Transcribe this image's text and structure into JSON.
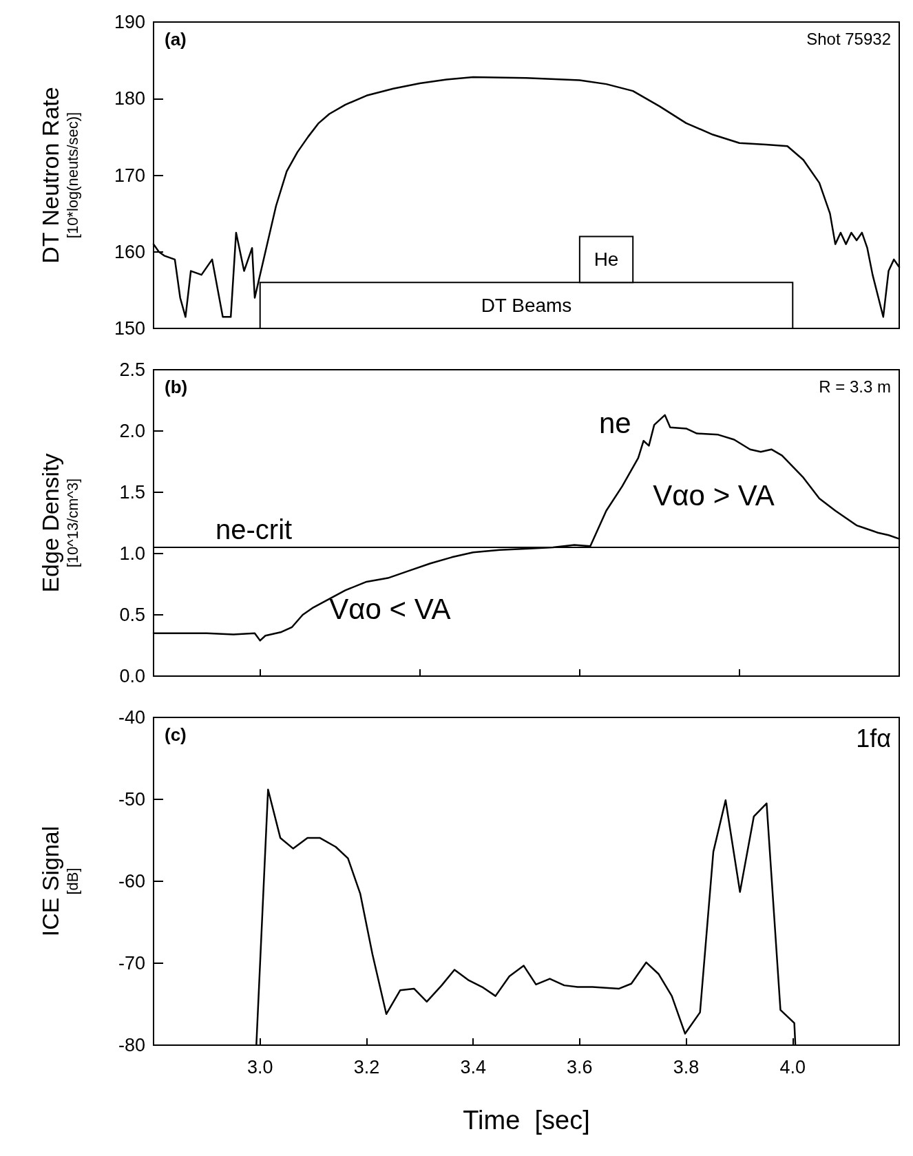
{
  "chart_data": [
    {
      "type": "line",
      "ylabel": "DT Neutron Rate\n[10*log(neuts/sec)]",
      "xlim": [
        2.8,
        4.2
      ],
      "ylim": [
        150,
        190
      ],
      "yticks": [
        150,
        160,
        170,
        180,
        190
      ],
      "tick_labels": "y",
      "grid": false,
      "marker": "none",
      "series": [
        {
          "color": "#000000",
          "x": [
            2.8,
            2.81,
            2.82,
            2.84,
            2.85,
            2.86,
            2.87,
            2.89,
            2.91,
            2.93,
            2.945,
            2.955,
            2.97,
            2.985,
            2.99,
            3.01,
            3.03,
            3.05,
            3.07,
            3.09,
            3.11,
            3.13,
            3.16,
            3.2,
            3.25,
            3.3,
            3.35,
            3.4,
            3.5,
            3.6,
            3.65,
            3.7,
            3.75,
            3.8,
            3.85,
            3.9,
            3.95,
            3.99,
            4.02,
            4.05,
            4.07,
            4.08,
            4.09,
            4.1,
            4.11,
            4.12,
            4.13,
            4.14,
            4.15,
            4.17,
            4.18,
            4.19,
            4.2
          ],
          "values": [
            161,
            160,
            159.5,
            159,
            154,
            151.5,
            157.5,
            157,
            159,
            151.5,
            151.5,
            162.5,
            157.5,
            160.5,
            154,
            160,
            166,
            170.5,
            173,
            175,
            176.8,
            178,
            179.2,
            180.4,
            181.3,
            182,
            182.5,
            182.8,
            182.7,
            182.4,
            181.9,
            181,
            179,
            176.8,
            175.3,
            174.2,
            174,
            173.8,
            172,
            169,
            165,
            161,
            162.5,
            161,
            162.5,
            161.5,
            162.5,
            160.5,
            157,
            151.5,
            157.5,
            159,
            158
          ]
        }
      ],
      "bands": [
        {
          "axis": "x",
          "from": 3.0,
          "to": 4.0,
          "label": "DT Beams"
        },
        {
          "axis": "x",
          "from": 3.6,
          "to": 3.7,
          "label": "He"
        }
      ],
      "annotations": [
        "(a)",
        "Shot 75932"
      ]
    },
    {
      "type": "line",
      "ylabel": "Edge Density\n[10^13/cm^3]",
      "xlim": [
        2.8,
        4.2
      ],
      "ylim": [
        0,
        2.5
      ],
      "yticks": [
        {
          "value": 0,
          "label": "0.0"
        },
        0.5,
        {
          "value": 1,
          "label": "1.0"
        },
        1.5,
        {
          "value": 2,
          "label": "2.0"
        },
        2.5
      ],
      "tick_labels": "y",
      "grid": false,
      "marker": "none",
      "series": [
        {
          "color": "#000000",
          "x": [
            2.8,
            2.9,
            2.95,
            2.99,
            3.0,
            3.01,
            3.04,
            3.06,
            3.08,
            3.1,
            3.13,
            3.16,
            3.2,
            3.24,
            3.28,
            3.32,
            3.36,
            3.4,
            3.45,
            3.5,
            3.55,
            3.59,
            3.62,
            3.65,
            3.68,
            3.71,
            3.72,
            3.73,
            3.74,
            3.76,
            3.77,
            3.8,
            3.82,
            3.86,
            3.89,
            3.92,
            3.94,
            3.96,
            3.98,
            4.02,
            4.05,
            4.08,
            4.12,
            4.16,
            4.18,
            4.2
          ],
          "values": [
            0.35,
            0.35,
            0.34,
            0.35,
            0.29,
            0.33,
            0.36,
            0.4,
            0.5,
            0.56,
            0.63,
            0.7,
            0.77,
            0.8,
            0.86,
            0.92,
            0.97,
            1.01,
            1.03,
            1.04,
            1.05,
            1.07,
            1.06,
            1.35,
            1.55,
            1.78,
            1.92,
            1.88,
            2.05,
            2.13,
            2.03,
            2.02,
            1.98,
            1.97,
            1.93,
            1.85,
            1.83,
            1.85,
            1.8,
            1.62,
            1.45,
            1.35,
            1.23,
            1.17,
            1.15,
            1.12
          ]
        }
      ],
      "ref_lines": [
        {
          "axis": "y",
          "value": 1.05,
          "label": "ne-crit"
        }
      ],
      "annotations": [
        "(b)",
        "R = 3.3 m",
        "ne",
        "Vαo > VA",
        "Vαo < VA"
      ]
    },
    {
      "type": "line",
      "xlabel": "Time  [sec]",
      "ylabel": "ICE Signal\n[dB]",
      "xlim": [
        2.8,
        4.2
      ],
      "xticks": [
        {
          "value": 3,
          "label": "3.0"
        },
        3.2,
        3.4,
        3.6,
        3.8,
        {
          "value": 4,
          "label": "4.0"
        }
      ],
      "ylim": [
        -80,
        -40
      ],
      "yticks": [
        -80,
        -70,
        -60,
        -50,
        -40
      ],
      "grid": false,
      "marker": "none",
      "series": [
        {
          "color": "#000000",
          "x": [
            2.993,
            3.015,
            3.038,
            3.062,
            3.089,
            3.112,
            3.142,
            3.165,
            3.188,
            3.211,
            3.237,
            3.263,
            3.289,
            3.313,
            3.341,
            3.365,
            3.392,
            3.417,
            3.442,
            3.468,
            3.495,
            3.518,
            3.544,
            3.571,
            3.596,
            3.624,
            3.649,
            3.674,
            3.697,
            3.725,
            3.748,
            3.773,
            3.798,
            3.826,
            3.851,
            3.874,
            3.901,
            3.927,
            3.951,
            3.977,
            4.003,
            4.005
          ],
          "values": [
            -80,
            -48.8,
            -54.7,
            -56,
            -54.7,
            -54.7,
            -55.8,
            -57.2,
            -61.5,
            -68.9,
            -76.2,
            -73.3,
            -73.1,
            -74.7,
            -72.7,
            -70.8,
            -72.1,
            -72.9,
            -74,
            -71.6,
            -70.3,
            -72.6,
            -71.9,
            -72.7,
            -72.9,
            -72.9,
            -73,
            -73.1,
            -72.5,
            -69.9,
            -71.3,
            -74,
            -78.6,
            -76,
            -56.4,
            -50.1,
            -61.3,
            -52.1,
            -50.5,
            -75.7,
            -77.3,
            -80
          ]
        }
      ],
      "annotations": [
        "(c)",
        "1fα"
      ]
    }
  ]
}
